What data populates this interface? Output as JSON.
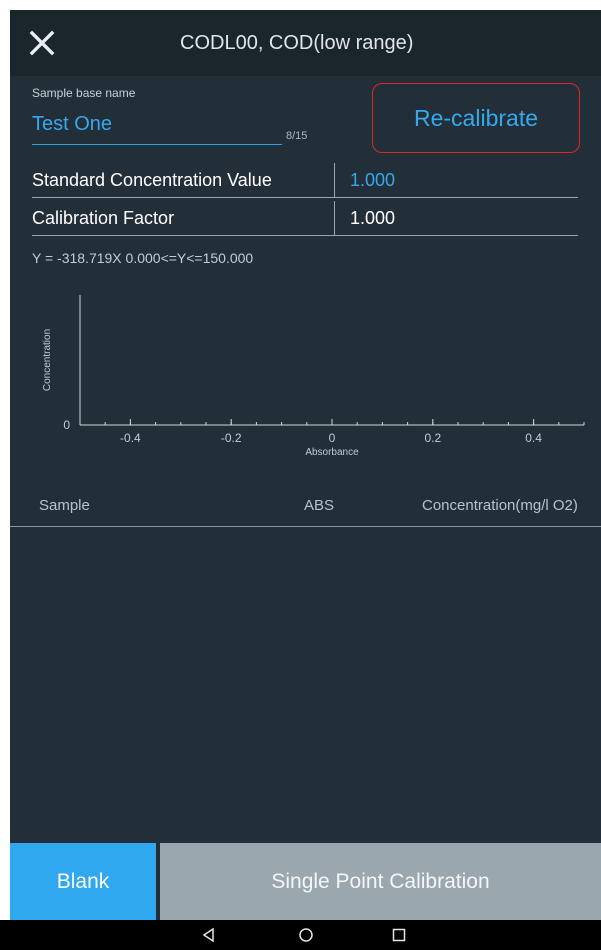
{
  "header": {
    "close_icon": "close-icon",
    "title": "CODL00, COD(low range)"
  },
  "sample": {
    "label": "Sample base name",
    "value": "Test One",
    "char_count": "8/15"
  },
  "actions": {
    "recalibrate_label": "Re-calibrate",
    "blank_label": "Blank",
    "single_point_label": "Single Point Calibration"
  },
  "params": [
    {
      "label": "Standard Concentration Value",
      "value": "1.000"
    },
    {
      "label": "Calibration Factor",
      "value": "1.000"
    }
  ],
  "equation": "Y = -318.719X   0.000<=Y<=150.000",
  "chart_data": {
    "type": "line",
    "xlabel": "Absorbance",
    "ylabel": "Concentration",
    "x_ticks": [
      "-0.4",
      "-0.2",
      "0",
      "0.2",
      "0.4"
    ],
    "y_ticks": [
      "0"
    ],
    "xlim": [
      -0.5,
      0.5
    ],
    "series": []
  },
  "table": {
    "columns": [
      "Sample",
      "ABS",
      "Concentration(mg/l O2)"
    ],
    "rows": []
  },
  "colors": {
    "background": "#232f38",
    "header": "#1b252c",
    "accent": "#2fa8ef",
    "highlight_border": "#e0262a",
    "disabled_button": "#9aa7ae"
  },
  "navbar": [
    "back-icon",
    "home-icon",
    "recents-icon"
  ]
}
